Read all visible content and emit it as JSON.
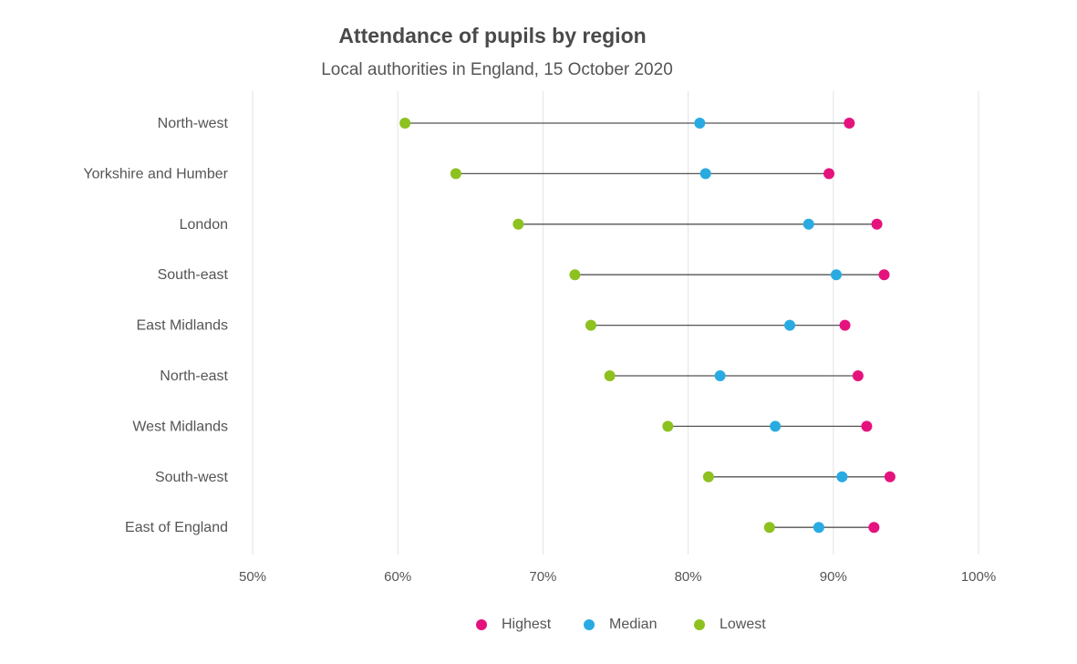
{
  "chart_data": {
    "type": "scatter",
    "subtype": "dumbbell",
    "title": "Attendance of pupils by region",
    "subtitle": "Local authorities in England, 15 October 2020",
    "categories": [
      "North-west",
      "Yorkshire and Humber",
      "London",
      "South-east",
      "East Midlands",
      "North-east",
      "West Midlands",
      "South-west",
      "East of England"
    ],
    "series": [
      {
        "name": "Highest",
        "color": "#e5127d",
        "values": [
          91.1,
          89.7,
          93.0,
          93.5,
          90.8,
          91.7,
          92.3,
          93.9,
          92.8
        ]
      },
      {
        "name": "Median",
        "color": "#29abe2",
        "values": [
          80.8,
          81.2,
          88.3,
          90.2,
          87.0,
          82.2,
          86.0,
          90.6,
          89.0
        ]
      },
      {
        "name": "Lowest",
        "color": "#8dc11f",
        "values": [
          60.5,
          64.0,
          68.3,
          72.2,
          73.3,
          74.6,
          78.6,
          81.4,
          85.6
        ]
      }
    ],
    "xlim": [
      50,
      100
    ],
    "xticks": [
      "50%",
      "60%",
      "70%",
      "80%",
      "90%",
      "100%"
    ],
    "xtick_values": [
      50,
      60,
      70,
      80,
      90,
      100
    ],
    "xlabel": "",
    "ylabel": "",
    "grid": "vertical",
    "legend_position": "bottom-center",
    "connector_color": "#555555"
  }
}
